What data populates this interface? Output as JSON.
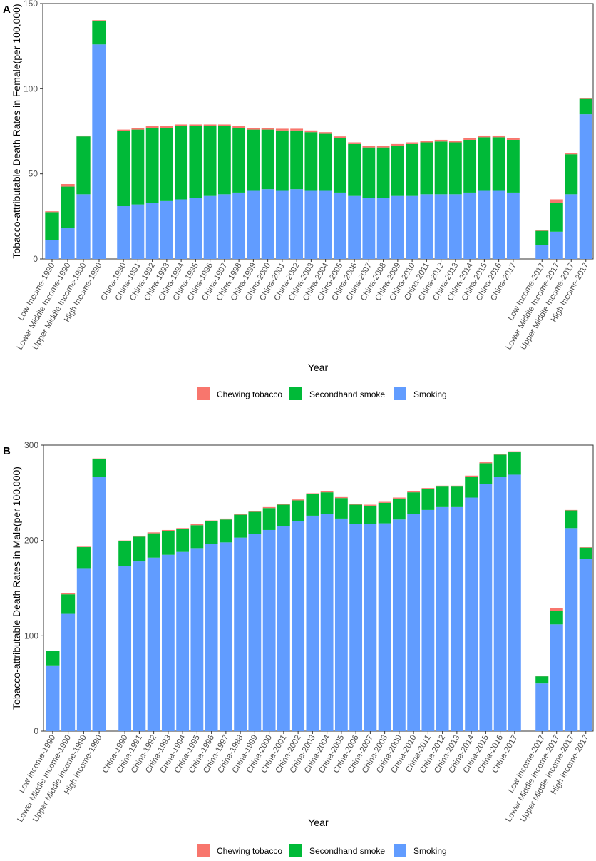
{
  "legend": {
    "items": [
      {
        "label": "Chewing tobacco",
        "color": "#F8766D"
      },
      {
        "label": "Secondhand smoke",
        "color": "#00BA38"
      },
      {
        "label": "Smoking",
        "color": "#619CFF"
      }
    ]
  },
  "chart_data": [
    {
      "panel_label": "A",
      "type": "bar",
      "stacked": true,
      "xlabel": "Year",
      "ylabel": "Tobacco-attributable Death Rates in Female(per 100,000)",
      "ylim": [
        0,
        150
      ],
      "yticks": [
        0,
        50,
        100,
        150
      ],
      "categories": [
        "Low Income-1990",
        "Lower Middle Income-1990",
        "Upper Middle Income-1990",
        "High Income-1990",
        "China-1990",
        "China-1991",
        "China-1992",
        "China-1993",
        "China-1994",
        "China-1995",
        "China-1996",
        "China-1997",
        "China-1998",
        "China-1999",
        "China-2000",
        "China-2001",
        "China-2002",
        "China-2003",
        "China-2004",
        "China-2005",
        "China-2006",
        "China-2007",
        "China-2008",
        "China-2009",
        "China-2010",
        "China-2011",
        "China-2012",
        "China-2013",
        "China-2014",
        "China-2015",
        "China-2016",
        "China-2017",
        "Low Income-2017",
        "Lower Middle Income-2017",
        "Upper Middle Income-2017",
        "High Income-2017"
      ],
      "series": [
        {
          "name": "Smoking",
          "values": [
            11,
            18,
            38,
            126,
            31,
            32,
            33,
            34,
            35,
            36,
            37,
            38,
            39,
            40,
            41,
            40,
            41,
            40,
            40,
            39,
            37,
            36,
            36,
            37,
            37,
            38,
            38,
            38,
            39,
            40,
            40,
            39,
            8,
            16,
            38,
            85
          ]
        },
        {
          "name": "Secondhand smoke",
          "values": [
            16.5,
            24.5,
            34,
            14,
            44,
            44,
            44,
            43,
            43,
            42,
            41,
            40,
            38,
            36,
            35,
            35.5,
            34.5,
            34.5,
            33.5,
            32,
            30.5,
            29.5,
            29.5,
            29.5,
            30.5,
            30.5,
            31,
            30.5,
            31,
            31.5,
            31.5,
            31,
            8.5,
            17,
            23.5,
            9
          ]
        },
        {
          "name": "Chewing tobacco",
          "values": [
            0.5,
            1.5,
            0.5,
            0.3,
            1,
            1,
            1,
            1,
            1,
            1,
            1,
            1,
            1,
            1,
            1,
            1,
            1,
            1,
            1,
            1,
            1,
            1,
            1,
            1,
            1,
            1,
            1,
            1,
            1,
            1,
            1,
            1,
            0.5,
            2,
            0.5,
            0.3
          ]
        }
      ]
    },
    {
      "panel_label": "B",
      "type": "bar",
      "stacked": true,
      "xlabel": "Year",
      "ylabel": "Tobacco-attributable Death Rates in Male(per 100,000)",
      "ylim": [
        0,
        300
      ],
      "yticks": [
        0,
        100,
        200,
        300
      ],
      "categories": [
        "Low Income-1990",
        "Lower Middle Income-1990",
        "Upper Middle Income-1990",
        "High Income-1990",
        "China-1990",
        "China-1991",
        "China-1992",
        "China-1993",
        "China-1994",
        "China-1995",
        "China-1996",
        "China-1997",
        "China-1998",
        "China-1999",
        "China-2000",
        "China-2001",
        "China-2002",
        "China-2003",
        "China-2004",
        "China-2005",
        "China-2006",
        "China-2007",
        "China-2008",
        "China-2009",
        "China-2010",
        "China-2011",
        "China-2012",
        "China-2013",
        "China-2014",
        "China-2015",
        "China-2016",
        "China-2017",
        "Low Income-2017",
        "Lower Middle Income-2017",
        "Upper Middle Income-2017",
        "High Income-2017"
      ],
      "series": [
        {
          "name": "Smoking",
          "values": [
            69,
            123,
            171,
            267,
            173,
            178,
            182,
            185,
            188,
            192,
            196,
            198,
            203,
            207,
            211,
            215,
            220,
            226,
            228,
            223,
            217,
            217,
            218,
            222,
            228,
            232,
            235,
            235,
            245,
            259,
            267,
            269,
            50,
            112,
            213,
            181
          ]
        },
        {
          "name": "Secondhand smoke",
          "values": [
            15,
            20.5,
            22,
            18.5,
            26,
            26,
            25.5,
            25,
            24,
            24,
            24,
            24,
            24,
            23,
            23,
            22.5,
            22,
            22.5,
            22.5,
            21.5,
            20.5,
            19.5,
            21.5,
            22,
            22.5,
            22,
            21.5,
            21.5,
            22,
            22,
            23,
            23.5,
            7.5,
            14,
            18.5,
            11.5
          ]
        },
        {
          "name": "Chewing tobacco",
          "values": [
            0.5,
            1.5,
            0.5,
            0.5,
            1,
            1,
            1,
            1,
            1,
            1,
            1,
            1,
            1,
            1,
            1,
            1,
            1,
            1,
            1,
            1,
            1,
            1,
            1,
            1,
            1,
            1,
            1,
            1,
            1,
            1,
            1,
            1,
            0.5,
            3,
            0.5,
            0.5
          ]
        }
      ]
    }
  ]
}
